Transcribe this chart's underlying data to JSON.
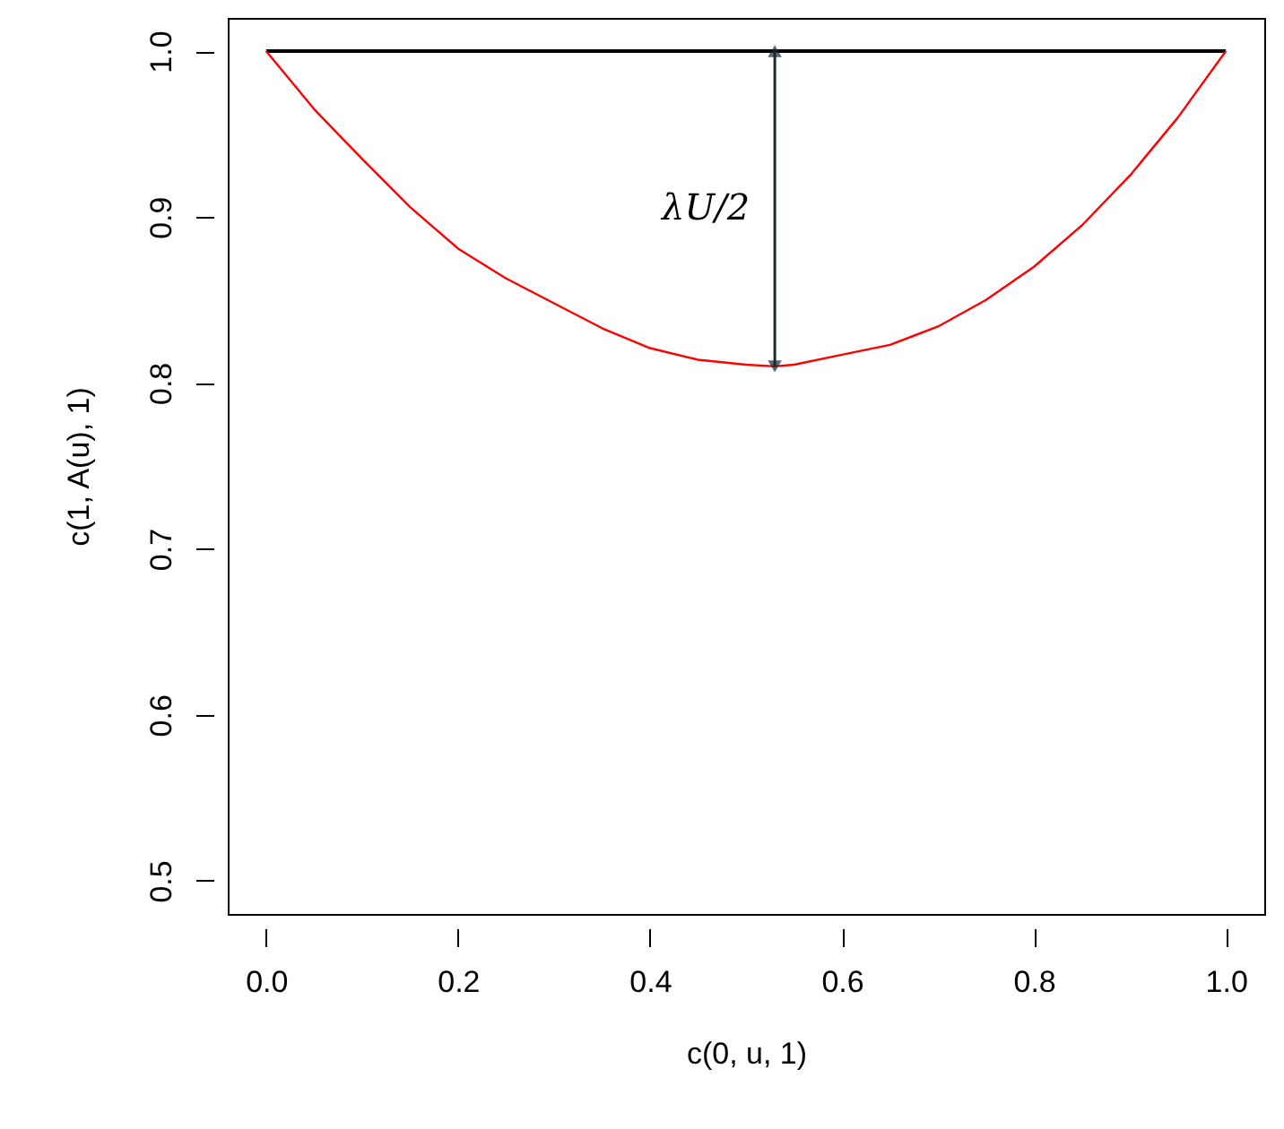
{
  "chart_data": {
    "type": "line",
    "xlabel": "c(0, u, 1)",
    "ylabel": "c(1, A(u), 1)",
    "xlim": [
      -0.04,
      1.04
    ],
    "ylim": [
      0.48,
      1.02
    ],
    "xticks": [
      {
        "value": 0,
        "label": "0.0"
      },
      0.2,
      0.4,
      0.6,
      0.8,
      {
        "value": 1,
        "label": "1.0"
      }
    ],
    "yticks": [
      0.5,
      0.6,
      0.7,
      0.8,
      0.9,
      {
        "value": 1,
        "label": "1.0"
      }
    ],
    "grid": false,
    "marker": "none",
    "line_style": "solid",
    "series": [
      {
        "color": "#000000",
        "x": [
          0,
          1
        ],
        "values": [
          1,
          1
        ]
      },
      {
        "color": "#ff0000",
        "x": [
          0,
          0.05,
          0.1,
          0.15,
          0.2,
          0.25,
          0.3,
          0.35,
          0.4,
          0.45,
          0.5,
          0.53,
          0.55,
          0.6,
          0.65,
          0.7,
          0.75,
          0.8,
          0.85,
          0.9,
          0.95,
          1
        ],
        "values": [
          1,
          0.965,
          0.935,
          0.906,
          0.881,
          0.863,
          0.848,
          0.833,
          0.821,
          0.814,
          0.811,
          0.81,
          0.811,
          0.817,
          0.823,
          0.834,
          0.85,
          0.87,
          0.895,
          0.925,
          0.96,
          1
        ]
      }
    ],
    "annotations": [
      "λU/2"
    ]
  }
}
